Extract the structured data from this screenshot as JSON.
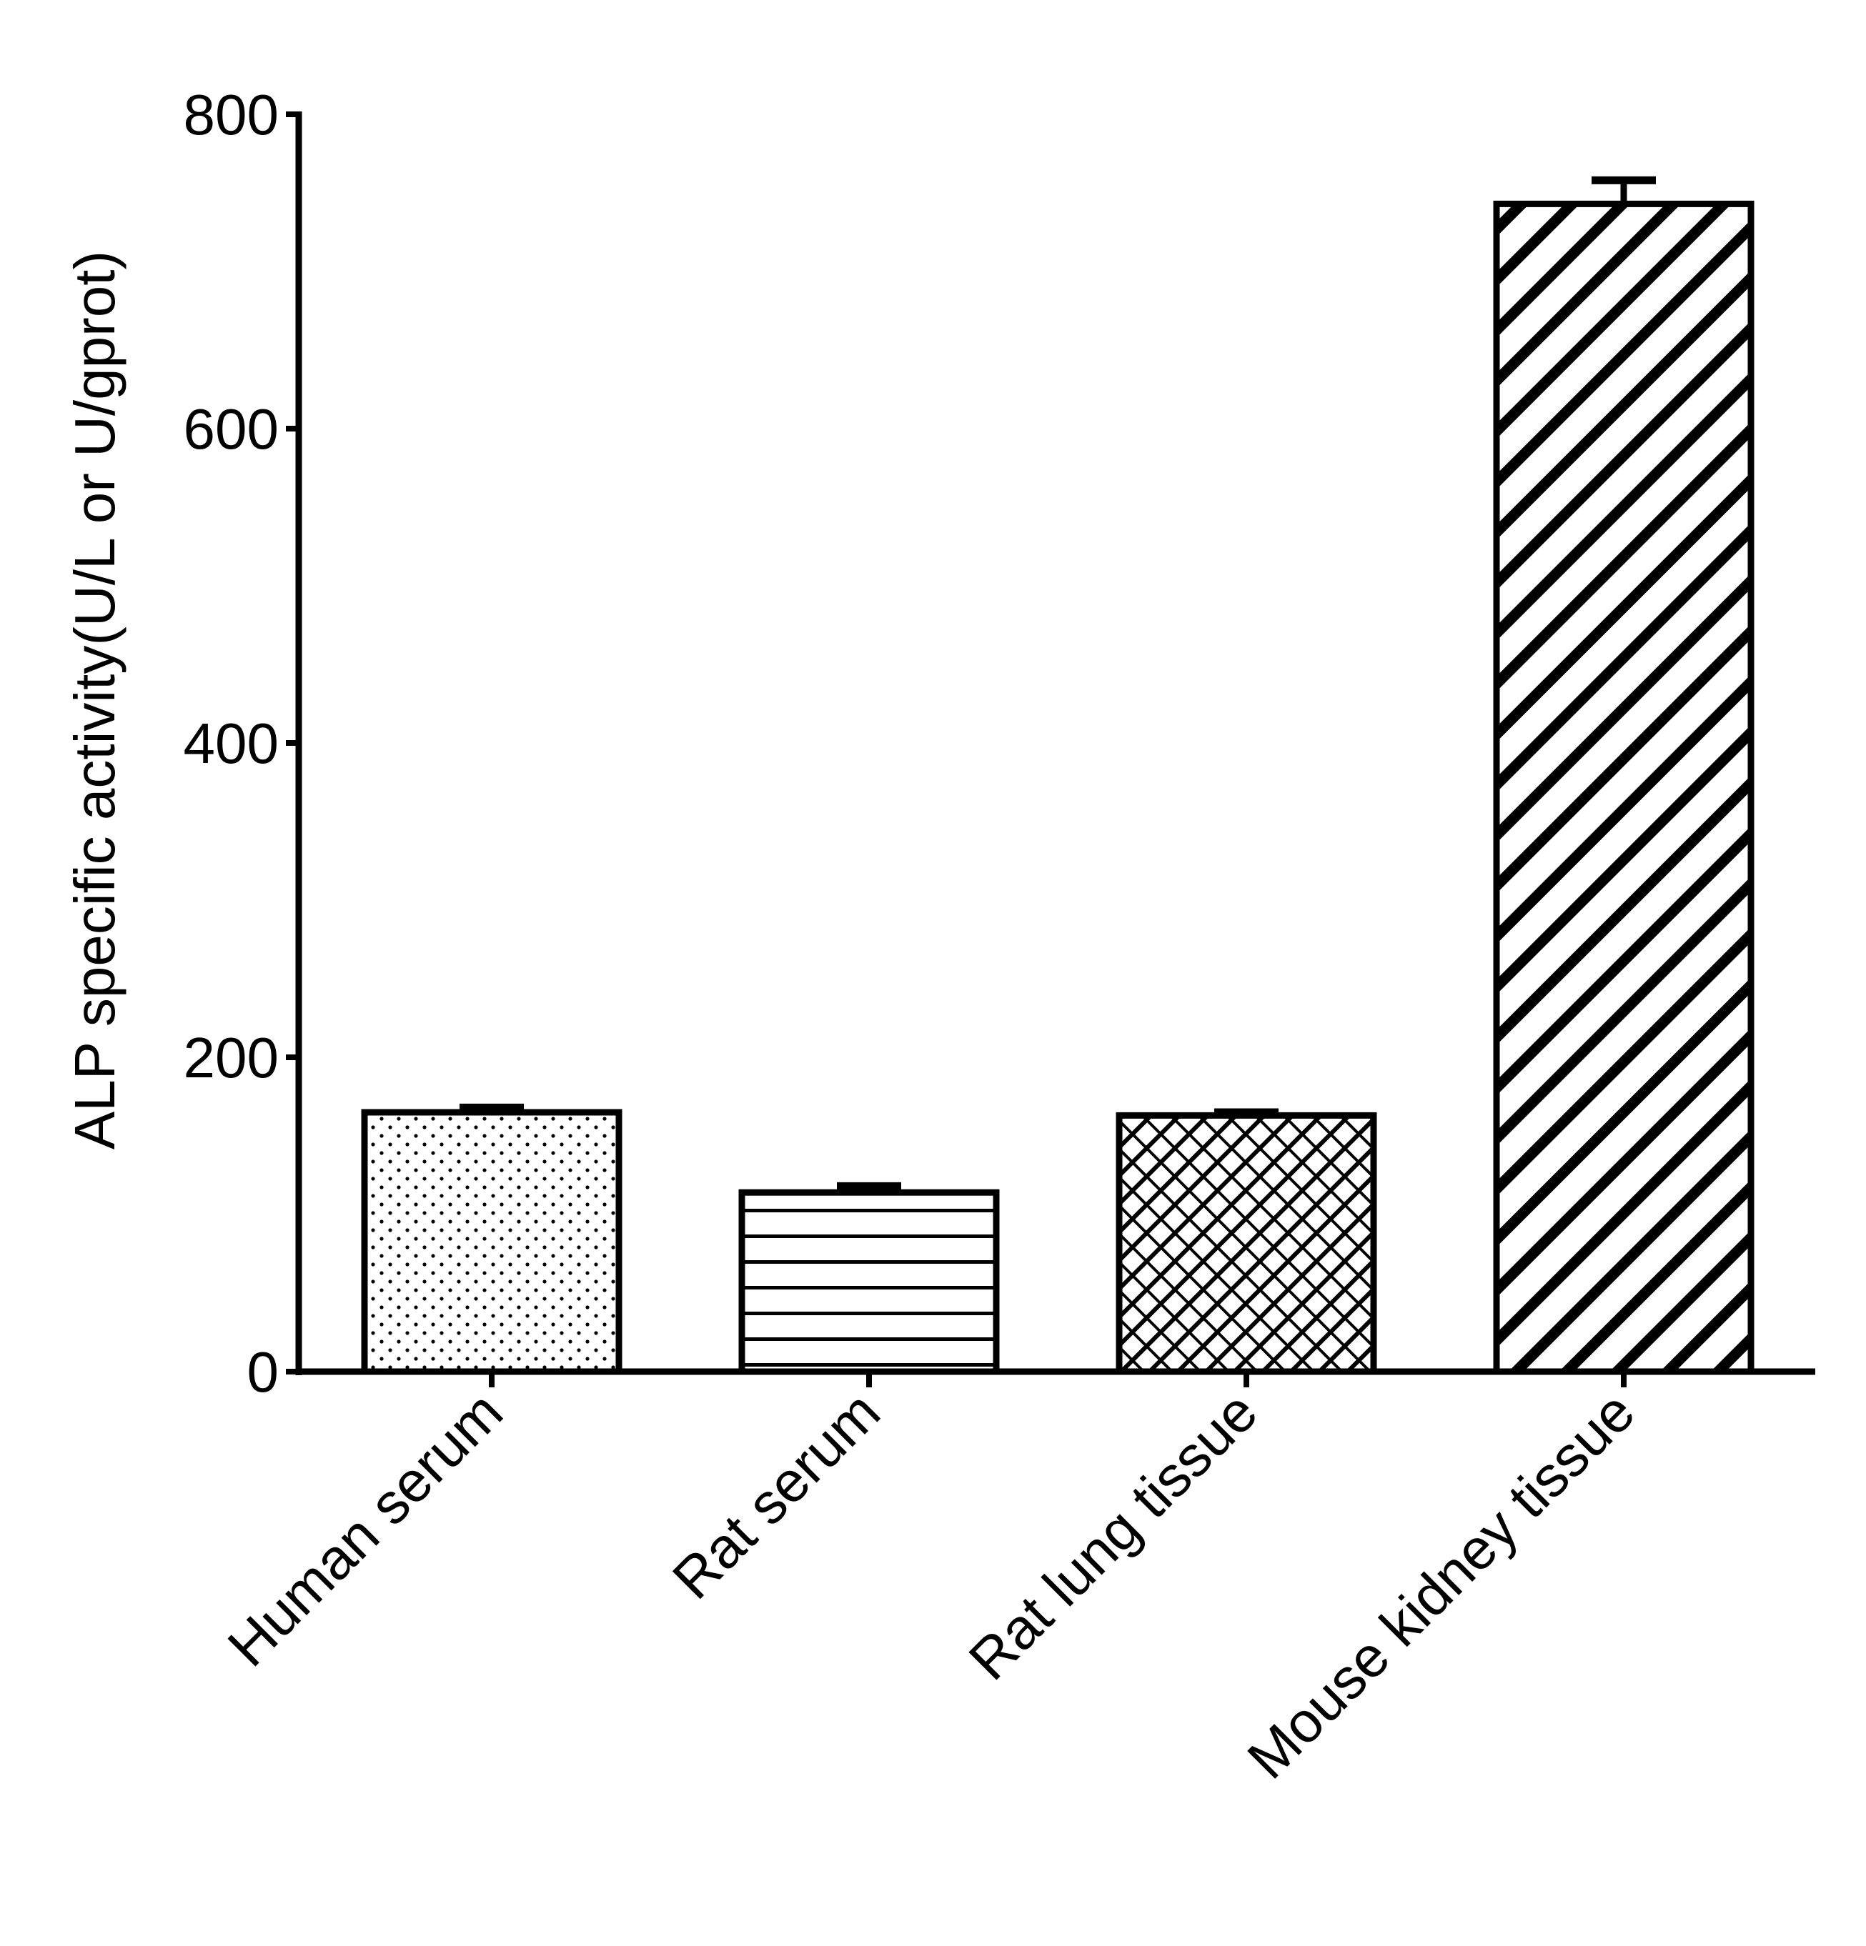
{
  "chart_data": {
    "type": "bar",
    "title": "",
    "xlabel": "",
    "ylabel": "ALP specific activity(U/L or U/gprot)",
    "ylim": [
      0,
      800
    ],
    "yticks": [
      0,
      200,
      400,
      600,
      800
    ],
    "ytick_labels": [
      "0",
      "200",
      "400",
      "600",
      "800"
    ],
    "categories": [
      "Human serum",
      "Rat serum",
      "Rat lung tissue",
      "Mouse kidney tissue"
    ],
    "values": [
      165,
      114,
      163,
      743
    ],
    "errors": [
      3,
      4,
      2,
      15
    ],
    "patterns": [
      "dots",
      "horizontal-lines",
      "crosshatch",
      "diagonal-stripes"
    ],
    "colors": {
      "fill": "#ffffff",
      "stroke": "#000000"
    },
    "grid": false,
    "legend": "none"
  }
}
